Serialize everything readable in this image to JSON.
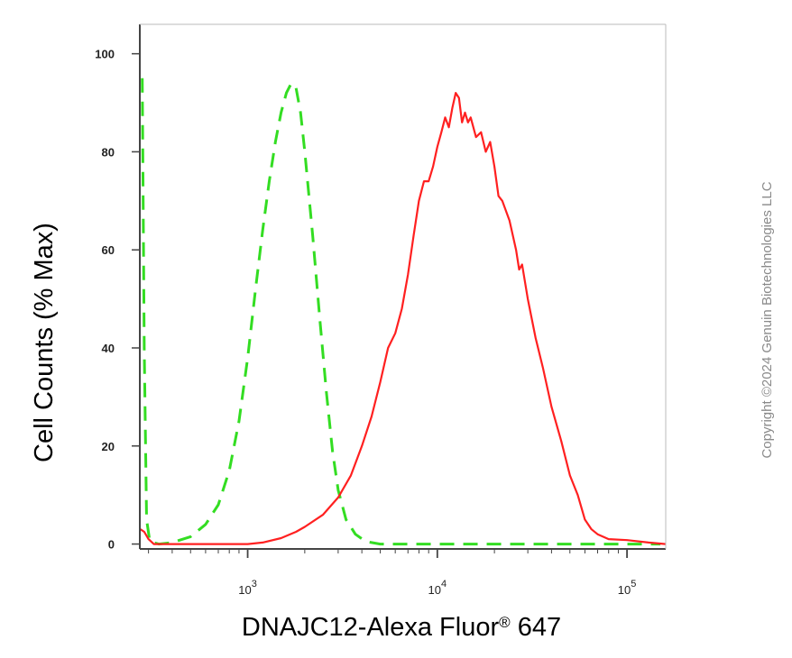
{
  "chart_data": {
    "type": "line",
    "title": "",
    "xlabel": "DNAJC12-Alexa Fluor",
    "xlabel_superscript": "®",
    "xlabel_suffix": " 647",
    "ylabel": "Cell Counts (% Max)",
    "x_scale": "log",
    "xlim": [
      270,
      160000
    ],
    "ylim": [
      -1,
      106
    ],
    "yticks": [
      0,
      20,
      40,
      60,
      80,
      100
    ],
    "xticks": [
      {
        "value": 1000,
        "base": "10",
        "exp": "3"
      },
      {
        "value": 10000,
        "base": "10",
        "exp": "4"
      },
      {
        "value": 100000,
        "base": "10",
        "exp": "5"
      }
    ],
    "grid": false,
    "colors": {
      "isotype": "#33dd22",
      "sample": "#ff2020",
      "axis": "#444444"
    },
    "series": [
      {
        "style": "dashed",
        "color": "#33dd22",
        "points": [
          [
            278,
            95
          ],
          [
            285,
            40
          ],
          [
            293,
            5
          ],
          [
            305,
            0.5
          ],
          [
            340,
            0
          ],
          [
            400,
            0.3
          ],
          [
            500,
            1.5
          ],
          [
            600,
            4
          ],
          [
            700,
            8
          ],
          [
            800,
            15
          ],
          [
            900,
            25
          ],
          [
            1000,
            38
          ],
          [
            1100,
            52
          ],
          [
            1200,
            64
          ],
          [
            1300,
            74
          ],
          [
            1400,
            82
          ],
          [
            1500,
            88
          ],
          [
            1600,
            92
          ],
          [
            1700,
            94
          ],
          [
            1800,
            93
          ],
          [
            1900,
            88
          ],
          [
            2000,
            80
          ],
          [
            2200,
            63
          ],
          [
            2400,
            46
          ],
          [
            2600,
            31
          ],
          [
            2800,
            19
          ],
          [
            3000,
            11
          ],
          [
            3300,
            5
          ],
          [
            3700,
            2
          ],
          [
            4200,
            0.5
          ],
          [
            5000,
            0
          ],
          [
            10000,
            0
          ],
          [
            30000,
            0
          ],
          [
            60000,
            0
          ],
          [
            100000,
            0
          ],
          [
            150000,
            0
          ]
        ]
      },
      {
        "style": "solid",
        "color": "#ff2020",
        "points": [
          [
            272,
            3
          ],
          [
            285,
            2.5
          ],
          [
            300,
            1
          ],
          [
            320,
            0
          ],
          [
            500,
            0
          ],
          [
            1000,
            0
          ],
          [
            1200,
            0.3
          ],
          [
            1500,
            1.2
          ],
          [
            1800,
            2.5
          ],
          [
            2000,
            3.5
          ],
          [
            2500,
            6
          ],
          [
            3000,
            9.5
          ],
          [
            3500,
            14
          ],
          [
            4000,
            20
          ],
          [
            4500,
            26
          ],
          [
            5000,
            33
          ],
          [
            5500,
            40
          ],
          [
            6000,
            43
          ],
          [
            6500,
            48
          ],
          [
            7000,
            55
          ],
          [
            7500,
            63
          ],
          [
            8000,
            70
          ],
          [
            8500,
            74
          ],
          [
            9000,
            74
          ],
          [
            9500,
            77
          ],
          [
            10000,
            81
          ],
          [
            10500,
            84
          ],
          [
            11000,
            87
          ],
          [
            11500,
            85
          ],
          [
            12000,
            89
          ],
          [
            12500,
            92
          ],
          [
            13000,
            91
          ],
          [
            13500,
            86
          ],
          [
            14000,
            88
          ],
          [
            14500,
            86
          ],
          [
            15000,
            87
          ],
          [
            16000,
            83
          ],
          [
            17000,
            84
          ],
          [
            18000,
            80
          ],
          [
            19000,
            82
          ],
          [
            20000,
            77
          ],
          [
            21000,
            71
          ],
          [
            22000,
            70
          ],
          [
            24000,
            66
          ],
          [
            26000,
            60
          ],
          [
            27000,
            56
          ],
          [
            28000,
            57
          ],
          [
            30000,
            50
          ],
          [
            33000,
            42
          ],
          [
            36000,
            36
          ],
          [
            40000,
            28
          ],
          [
            45000,
            21
          ],
          [
            50000,
            14
          ],
          [
            55000,
            10
          ],
          [
            60000,
            5
          ],
          [
            65000,
            3
          ],
          [
            70000,
            2
          ],
          [
            80000,
            1
          ],
          [
            100000,
            0.8
          ],
          [
            130000,
            0.3
          ],
          [
            160000,
            0
          ]
        ]
      }
    ],
    "watermark": "Copyright ©2024 Genuin Biotechnologies LLC"
  }
}
